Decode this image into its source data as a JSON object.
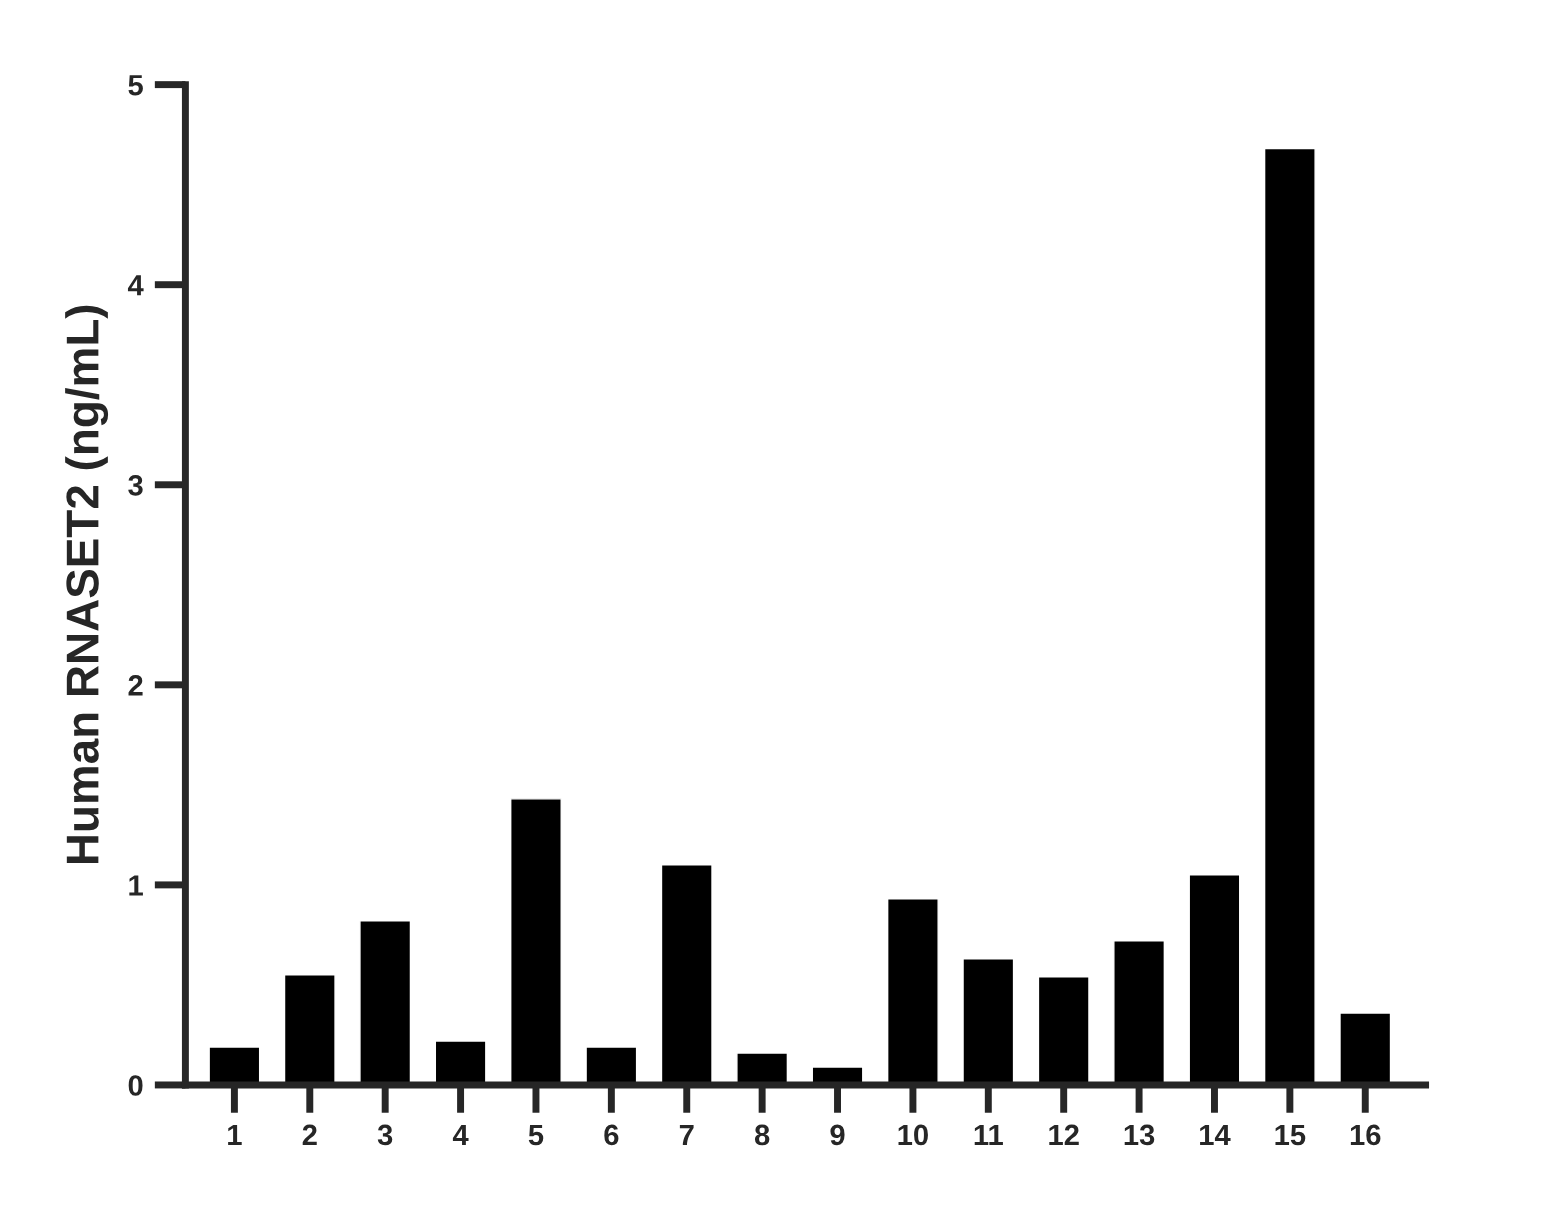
{
  "chart_data": {
    "type": "bar",
    "ylabel": "Human RNASET2 (ng/mL)",
    "categories": [
      "1",
      "2",
      "3",
      "4",
      "5",
      "6",
      "7",
      "8",
      "9",
      "10",
      "11",
      "12",
      "13",
      "14",
      "15",
      "16"
    ],
    "values": [
      0.19,
      0.55,
      0.82,
      0.22,
      1.43,
      0.19,
      1.1,
      0.16,
      0.09,
      0.93,
      0.63,
      0.54,
      0.72,
      1.05,
      4.68,
      0.36
    ],
    "color": "#000000",
    "ylim": [
      0,
      5
    ],
    "yticks": [
      0,
      1,
      2,
      3,
      4,
      5
    ],
    "grid": false
  }
}
